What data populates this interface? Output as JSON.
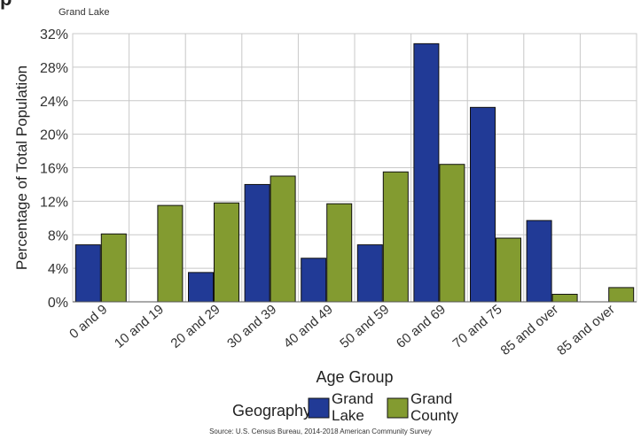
{
  "page": {
    "top_title": "p",
    "subtitle": "Grand Lake",
    "source": "Source: U.S. Census Bureau, 2014-2018 American Community Survey"
  },
  "colors": {
    "grand_lake": "#213a96",
    "grand_county": "#839b30",
    "grid": "#c8c8c8"
  },
  "chart_data": {
    "type": "bar",
    "categories": [
      "0 and 9",
      "10 and 19",
      "20 and 29",
      "30 and 39",
      "40 and 49",
      "50 and 59",
      "60 and 69",
      "70 and 75",
      "85 and over",
      "85 and over"
    ],
    "series": [
      {
        "name": "Grand Lake",
        "values": [
          6.8,
          0,
          3.5,
          14.0,
          5.2,
          6.8,
          30.8,
          23.2,
          9.7,
          0
        ]
      },
      {
        "name": "Grand County",
        "values": [
          8.1,
          11.5,
          11.8,
          15.0,
          11.7,
          15.5,
          16.4,
          7.6,
          0.9,
          1.7
        ]
      }
    ],
    "xlabel": "Age Group",
    "ylabel": "Percentage of Total Population",
    "ylim": [
      0,
      32
    ],
    "yticks": [
      "0%",
      "4%",
      "8%",
      "12%",
      "16%",
      "20%",
      "24%",
      "28%",
      "32%"
    ],
    "legend_title": "Geography",
    "legend_items": [
      [
        "Grand",
        "Lake"
      ],
      [
        "Grand",
        "County"
      ]
    ],
    "legend_position": "bottom",
    "grid": true
  }
}
